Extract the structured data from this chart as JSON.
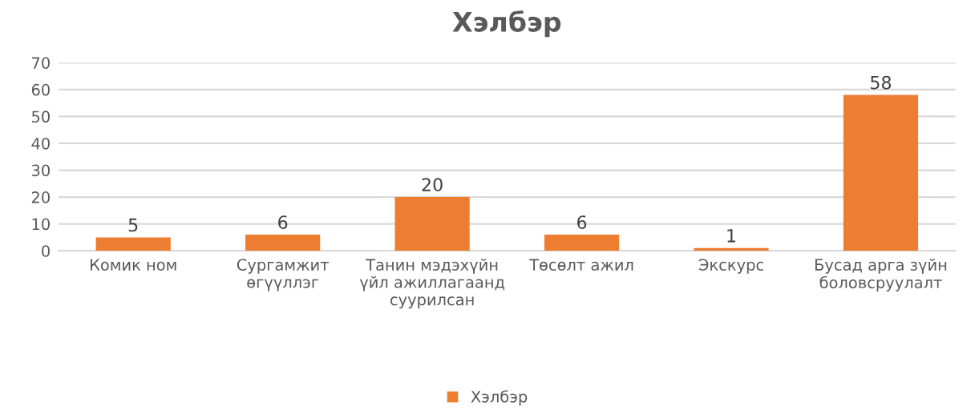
{
  "chart_data": {
    "type": "bar",
    "title": "Хэлбэр",
    "categories": [
      "Комик ном",
      "Сургамжит\nөгүүллэг",
      "Танин мэдэхүйн\nүйл ажиллагаанд\nсуурилсан",
      "Төсөлт ажил",
      "Экскурс",
      "Бусад арга зүйн\nболовсруулалт"
    ],
    "series": [
      {
        "name": "Хэлбэр",
        "color": "#ed7d31",
        "values": [
          5,
          6,
          20,
          6,
          1,
          58
        ]
      }
    ],
    "ylim": [
      0,
      70
    ],
    "yticks": [
      0,
      10,
      20,
      30,
      40,
      50,
      60,
      70
    ],
    "grid": "y",
    "legend": "bottom",
    "data_labels": true
  }
}
